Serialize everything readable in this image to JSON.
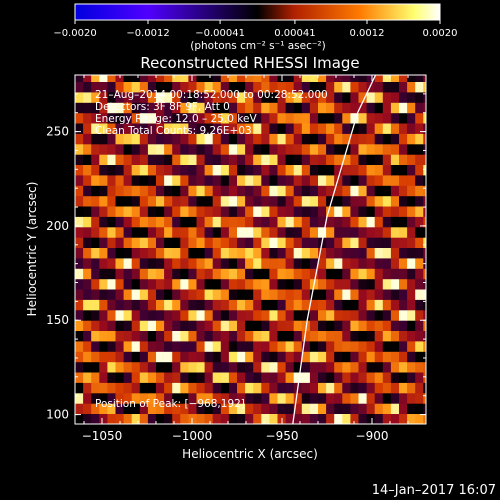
{
  "chart_data": {
    "type": "heatmap",
    "title": "Reconstructed RHESSI Image",
    "xlabel": "Heliocentric X (arcsec)",
    "ylabel": "Heliocentric Y (arcsec)",
    "xlim": [
      -1065,
      -870
    ],
    "ylim": [
      95,
      280
    ],
    "x_ticks": [
      -1050,
      -1000,
      -950,
      -900
    ],
    "x_tick_labels": [
      "−1050",
      "−1000",
      "−950",
      "−900"
    ],
    "y_ticks": [
      100,
      150,
      200,
      250
    ],
    "y_tick_labels": [
      "100",
      "150",
      "200",
      "250"
    ],
    "colorbar": {
      "min": -0.002,
      "max": 0.002,
      "ticks": [
        -0.002,
        -0.0012,
        -0.00041,
        0.00041,
        0.0012,
        0.002
      ],
      "tick_labels": [
        "−0.0020",
        "−0.0012",
        "−0.00041",
        "0.00041",
        "0.0012",
        "0.0020"
      ],
      "unit_label": "(photons cm⁻² s⁻¹ asec⁻²)",
      "colors": [
        "#0000e0",
        "#5000ff",
        "#000000",
        "#b02000",
        "#ff7a00",
        "#ffff70",
        "#ffffff"
      ]
    },
    "annotations": [
      "21–Aug–2014 00:18:52.000 to 00:28:52.000",
      "Detectors: 3F 8F 9F, Att 0",
      "Energy Range: 12.0 – 25.0 keV",
      "Clean    Total Counts: 9.26E+03"
    ],
    "peak_label": "Position of Peak:  [−968,192]",
    "peak": {
      "x": -968,
      "y": 192
    },
    "limb_line": [
      {
        "x": -944,
        "y": 95
      },
      {
        "x": -936,
        "y": 150
      },
      {
        "x": -925,
        "y": 205
      },
      {
        "x": -908,
        "y": 260
      },
      {
        "x": -898,
        "y": 280
      }
    ],
    "fringe_angle_deg": 13,
    "fringe_period_arcsec": 9,
    "grid": false,
    "legend": "none"
  },
  "footer": {
    "date": "14–Jan–2017 16:07"
  }
}
